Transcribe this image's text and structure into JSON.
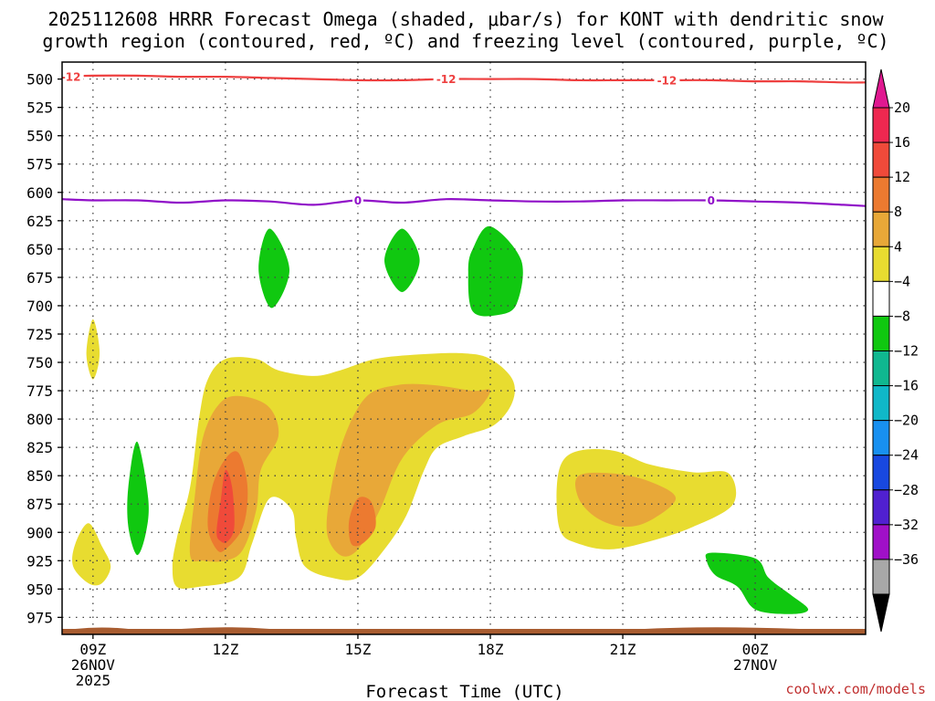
{
  "chart_data": {
    "type": "time-height contour",
    "title_line1": "2025112608 HRRR Forecast Omega (shaded, μbar/s) for KONT with dendritic snow",
    "title_line2": "growth region (contoured, red, ºC) and freezing level (contoured, purple, ºC)",
    "xlabel": "Forecast Time (UTC)",
    "credit": "coolwx.com/models",
    "x_range_hours": [
      8.3,
      26.5
    ],
    "y_range_hpa": [
      990,
      485
    ],
    "y_ticks": [
      500,
      525,
      550,
      575,
      600,
      625,
      650,
      675,
      700,
      725,
      750,
      775,
      800,
      825,
      850,
      875,
      900,
      925,
      950,
      975
    ],
    "x_ticks": [
      {
        "hour": 9,
        "lines": [
          "09Z",
          "26NOV",
          "2025"
        ]
      },
      {
        "hour": 12,
        "lines": [
          "12Z"
        ]
      },
      {
        "hour": 15,
        "lines": [
          "15Z"
        ]
      },
      {
        "hour": 18,
        "lines": [
          "18Z"
        ]
      },
      {
        "hour": 21,
        "lines": [
          "21Z"
        ]
      },
      {
        "hour": 24,
        "lines": [
          "00Z",
          "27NOV"
        ]
      }
    ],
    "colorbar": {
      "labels": [
        "20",
        "16",
        "12",
        "8",
        "4",
        "−4",
        "−8",
        "−12",
        "−16",
        "−20",
        "−24",
        "−28",
        "−32",
        "−36"
      ],
      "colors": [
        "#ee2850",
        "#f04a3a",
        "#ec7a30",
        "#e8a838",
        "#e8dc30",
        "#ffffff",
        "#10c810",
        "#10b890",
        "#10b8c8",
        "#1890f0",
        "#1848e0",
        "#5020d0",
        "#a010c8",
        "#a8a8a8"
      ],
      "top_arrow_color": "#e01890",
      "bottom_arrow_color": "#000000"
    },
    "contours": [
      {
        "name": "dgz-minus-12",
        "color": "#ee4040",
        "label": "-12",
        "label_hours": [
          8.5,
          17.0,
          22.0
        ],
        "points": [
          [
            8.3,
            498
          ],
          [
            9.0,
            497
          ],
          [
            10.0,
            497
          ],
          [
            11.0,
            498
          ],
          [
            12.0,
            498
          ],
          [
            13.0,
            499
          ],
          [
            14.0,
            500
          ],
          [
            15.0,
            501
          ],
          [
            16.0,
            501
          ],
          [
            17.0,
            500
          ],
          [
            18.0,
            500
          ],
          [
            19.0,
            500
          ],
          [
            20.0,
            501
          ],
          [
            21.0,
            501
          ],
          [
            22.0,
            501
          ],
          [
            23.0,
            501
          ],
          [
            24.0,
            502
          ],
          [
            25.0,
            502
          ],
          [
            26.0,
            503
          ],
          [
            26.5,
            503
          ]
        ]
      },
      {
        "name": "freezing-level-0",
        "color": "#9010c8",
        "label": "0",
        "label_hours": [
          15.0,
          23.0
        ],
        "points": [
          [
            8.3,
            606
          ],
          [
            9.0,
            607
          ],
          [
            10.0,
            607
          ],
          [
            11.0,
            609
          ],
          [
            12.0,
            607
          ],
          [
            13.0,
            608
          ],
          [
            14.0,
            611
          ],
          [
            15.0,
            607
          ],
          [
            16.0,
            609
          ],
          [
            17.0,
            606
          ],
          [
            18.0,
            607
          ],
          [
            19.0,
            608
          ],
          [
            20.0,
            608
          ],
          [
            21.0,
            607
          ],
          [
            22.0,
            607
          ],
          [
            23.0,
            607
          ],
          [
            24.0,
            608
          ],
          [
            25.0,
            609
          ],
          [
            26.0,
            611
          ],
          [
            26.5,
            612
          ]
        ]
      }
    ],
    "omega_regions": [
      {
        "name": "omega-yellow-main",
        "band": "4 to 8",
        "color": "#e8dc30",
        "points": [
          [
            10.8,
            930
          ],
          [
            10.9,
            905
          ],
          [
            11.2,
            860
          ],
          [
            11.4,
            800
          ],
          [
            11.6,
            765
          ],
          [
            12.0,
            747
          ],
          [
            12.7,
            747
          ],
          [
            13.2,
            757
          ],
          [
            14.0,
            762
          ],
          [
            14.6,
            757
          ],
          [
            15.4,
            747
          ],
          [
            16.4,
            743
          ],
          [
            17.4,
            742
          ],
          [
            18.0,
            747
          ],
          [
            18.5,
            765
          ],
          [
            18.5,
            785
          ],
          [
            18.1,
            805
          ],
          [
            17.4,
            815
          ],
          [
            16.8,
            825
          ],
          [
            16.5,
            845
          ],
          [
            16.1,
            885
          ],
          [
            15.6,
            915
          ],
          [
            15.0,
            940
          ],
          [
            14.4,
            940
          ],
          [
            13.8,
            930
          ],
          [
            13.6,
            905
          ],
          [
            13.5,
            880
          ],
          [
            13.0,
            870
          ],
          [
            12.6,
            910
          ],
          [
            12.3,
            940
          ],
          [
            11.4,
            948
          ],
          [
            10.9,
            948
          ]
        ]
      },
      {
        "name": "omega-yellow-east",
        "band": "4 to 8",
        "color": "#e8dc30",
        "points": [
          [
            19.6,
            840
          ],
          [
            20.0,
            828
          ],
          [
            20.8,
            828
          ],
          [
            21.6,
            840
          ],
          [
            22.6,
            847
          ],
          [
            23.4,
            848
          ],
          [
            23.5,
            875
          ],
          [
            22.6,
            895
          ],
          [
            21.6,
            908
          ],
          [
            20.7,
            915
          ],
          [
            20.0,
            910
          ],
          [
            19.6,
            900
          ],
          [
            19.5,
            870
          ]
        ]
      },
      {
        "name": "omega-yellow-small-upper",
        "band": "4 to 8",
        "color": "#e8dc30",
        "points": [
          [
            9.0,
            712
          ],
          [
            9.15,
            742
          ],
          [
            9.0,
            765
          ],
          [
            8.85,
            742
          ]
        ]
      },
      {
        "name": "omega-yellow-small-lower",
        "band": "4 to 8",
        "color": "#e8dc30",
        "points": [
          [
            8.9,
            892
          ],
          [
            9.2,
            912
          ],
          [
            9.4,
            930
          ],
          [
            9.2,
            945
          ],
          [
            8.9,
            945
          ],
          [
            8.55,
            930
          ],
          [
            8.6,
            910
          ]
        ]
      },
      {
        "name": "omega-orange-west",
        "band": "8 to 12",
        "color": "#e8a838",
        "points": [
          [
            11.2,
            920
          ],
          [
            11.3,
            870
          ],
          [
            11.5,
            815
          ],
          [
            11.9,
            785
          ],
          [
            12.4,
            780
          ],
          [
            13.0,
            790
          ],
          [
            13.2,
            815
          ],
          [
            12.8,
            845
          ],
          [
            12.7,
            880
          ],
          [
            12.4,
            915
          ],
          [
            12.0,
            925
          ],
          [
            11.5,
            925
          ]
        ]
      },
      {
        "name": "omega-orange-middle",
        "band": "8 to 12",
        "color": "#e8a838",
        "points": [
          [
            14.3,
            900
          ],
          [
            14.4,
            860
          ],
          [
            14.7,
            815
          ],
          [
            15.2,
            780
          ],
          [
            15.9,
            770
          ],
          [
            16.7,
            770
          ],
          [
            17.6,
            775
          ],
          [
            18.0,
            775
          ],
          [
            17.6,
            795
          ],
          [
            16.8,
            805
          ],
          [
            16.0,
            835
          ],
          [
            15.5,
            880
          ],
          [
            15.0,
            915
          ],
          [
            14.6,
            920
          ]
        ]
      },
      {
        "name": "omega-orange-east",
        "band": "8 to 12",
        "color": "#e8a838",
        "points": [
          [
            20.0,
            850
          ],
          [
            20.8,
            848
          ],
          [
            21.6,
            855
          ],
          [
            22.2,
            870
          ],
          [
            21.6,
            890
          ],
          [
            21.0,
            895
          ],
          [
            20.4,
            887
          ],
          [
            20.0,
            870
          ]
        ]
      },
      {
        "name": "omega-orange-dark-west",
        "band": "12 to 16",
        "color": "#ec7a30",
        "points": [
          [
            11.6,
            895
          ],
          [
            11.7,
            860
          ],
          [
            12.0,
            835
          ],
          [
            12.3,
            830
          ],
          [
            12.5,
            860
          ],
          [
            12.4,
            895
          ],
          [
            12.0,
            915
          ],
          [
            11.8,
            915
          ]
        ]
      },
      {
        "name": "omega-orange-dark-middle",
        "band": "12 to 16",
        "color": "#ec7a30",
        "points": [
          [
            14.8,
            890
          ],
          [
            15.0,
            870
          ],
          [
            15.3,
            873
          ],
          [
            15.4,
            895
          ],
          [
            15.1,
            910
          ],
          [
            14.85,
            910
          ]
        ]
      },
      {
        "name": "omega-red-west",
        "band": "16 to 20",
        "color": "#f04a3a",
        "points": [
          [
            11.8,
            900
          ],
          [
            11.9,
            870
          ],
          [
            12.0,
            845
          ],
          [
            12.15,
            860
          ],
          [
            12.2,
            895
          ],
          [
            12.05,
            908
          ],
          [
            11.9,
            908
          ]
        ]
      },
      {
        "name": "omega-green-1",
        "band": "-8 to -4",
        "color": "#10c810",
        "points": [
          [
            13.0,
            632
          ],
          [
            13.45,
            668
          ],
          [
            13.05,
            702
          ],
          [
            12.75,
            668
          ]
        ]
      },
      {
        "name": "omega-green-2",
        "band": "-8 to -4",
        "color": "#10c810",
        "points": [
          [
            16.0,
            632
          ],
          [
            16.4,
            660
          ],
          [
            16.0,
            688
          ],
          [
            15.6,
            660
          ]
        ]
      },
      {
        "name": "omega-green-3",
        "band": "-8 to -4",
        "color": "#10c810",
        "points": [
          [
            18.0,
            630
          ],
          [
            18.7,
            660
          ],
          [
            18.6,
            698
          ],
          [
            18.2,
            708
          ],
          [
            17.6,
            705
          ],
          [
            17.5,
            670
          ],
          [
            17.6,
            650
          ]
        ]
      },
      {
        "name": "omega-green-4",
        "band": "-8 to -4",
        "color": "#10c810",
        "points": [
          [
            10.0,
            820
          ],
          [
            10.25,
            870
          ],
          [
            10.2,
            900
          ],
          [
            10.0,
            920
          ],
          [
            9.8,
            895
          ],
          [
            9.8,
            860
          ]
        ]
      },
      {
        "name": "omega-green-5",
        "band": "-8 to -4",
        "color": "#10c810",
        "points": [
          [
            23.0,
            918
          ],
          [
            24.0,
            923
          ],
          [
            24.3,
            940
          ],
          [
            24.8,
            955
          ],
          [
            25.2,
            968
          ],
          [
            24.8,
            972
          ],
          [
            24.0,
            968
          ],
          [
            23.6,
            948
          ],
          [
            23.1,
            938
          ],
          [
            22.9,
            925
          ]
        ]
      }
    ],
    "terrain": {
      "color": "#a85c30"
    }
  }
}
